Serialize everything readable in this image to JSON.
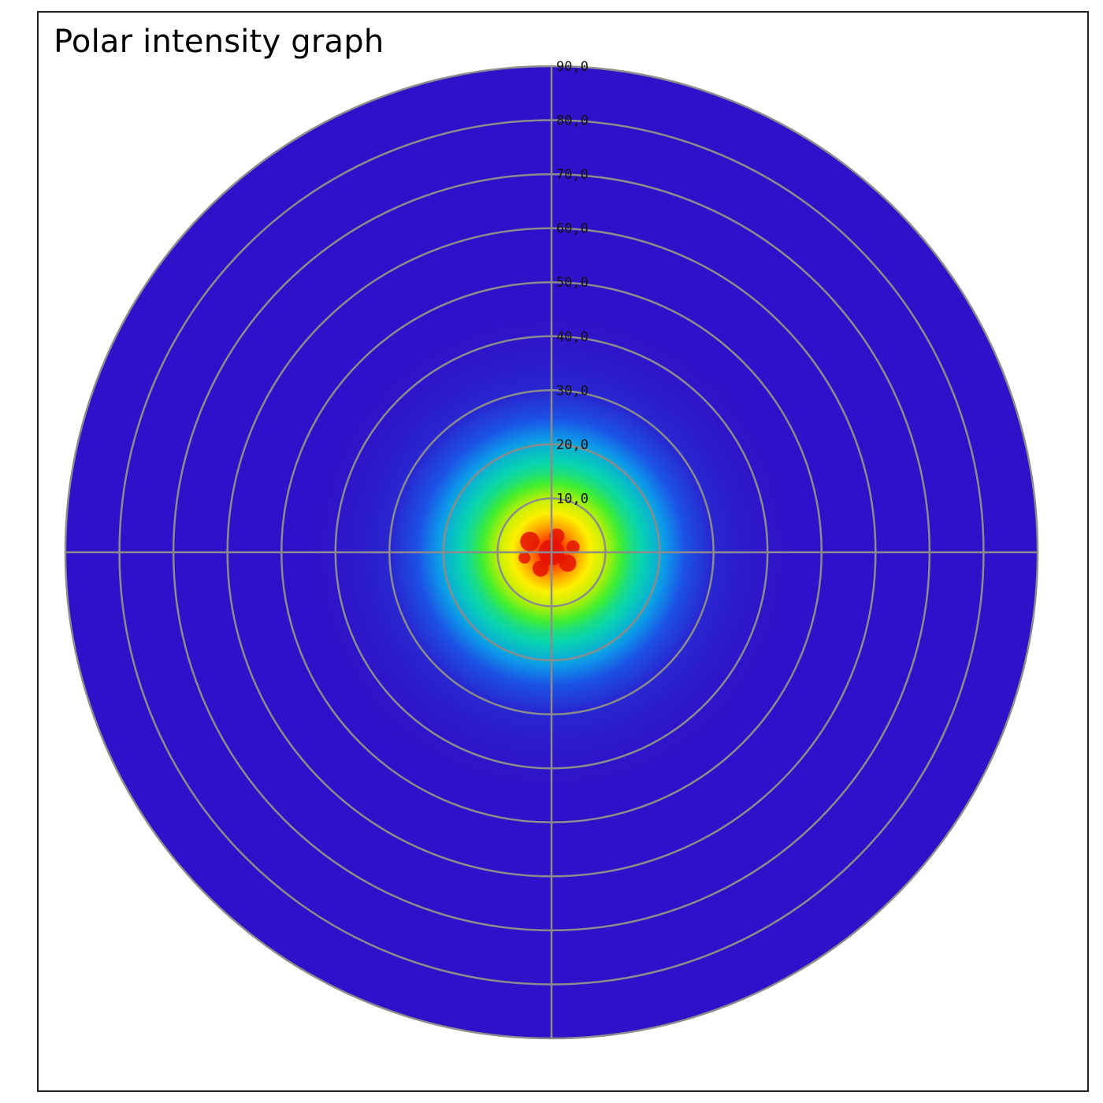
{
  "chart_data": {
    "type": "heatmap",
    "subtype": "polar",
    "title": "Polar intensity graph",
    "radial_axis": {
      "min": 0,
      "max": 90,
      "ticks": [
        10,
        20,
        30,
        40,
        50,
        60,
        70,
        80,
        90
      ],
      "tick_labels": [
        "10,0",
        "20,0",
        "30,0",
        "40,0",
        "50,0",
        "60,0",
        "70,0",
        "80,0",
        "90,0"
      ]
    },
    "intensity_profile": {
      "peak_at_radius": 0,
      "radius": [
        0,
        5,
        10,
        15,
        20,
        25,
        30,
        35,
        40,
        50,
        60,
        70,
        80,
        90
      ],
      "relative_intensity": [
        1.0,
        0.8,
        0.6,
        0.44,
        0.34,
        0.2,
        0.1,
        0.05,
        0.02,
        0.0,
        0.0,
        0.0,
        0.0,
        0.0
      ]
    },
    "colormap": [
      "#3010c8",
      "#2828d0",
      "#1c52e4",
      "#0d97ea",
      "#08d4b0",
      "#40ee30",
      "#c4f000",
      "#fff000",
      "#ffa000",
      "#ff3c00",
      "#d80000"
    ],
    "grid": true,
    "crosshair": true,
    "grid_color": "#8c8c8c",
    "legend": "none"
  }
}
